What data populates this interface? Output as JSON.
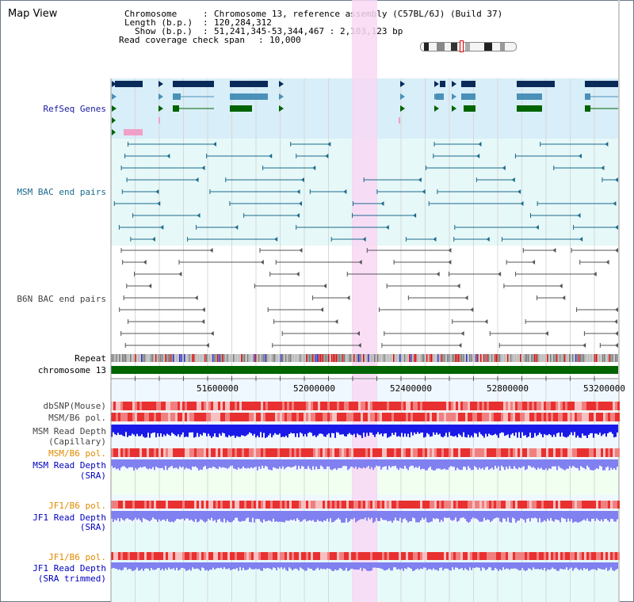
{
  "window": {
    "title": "Map View"
  },
  "info": {
    "chromosome_label": "Chromosome",
    "chromosome_value": "Chromosome 13, reference assembly (C57BL/6J) (Build 37)",
    "length_label": "Length (b.p.)",
    "length_value": "120,284,312",
    "show_label": "Show (b.p.)",
    "show_value": "51,241,345-53,344,467 : 2,103,123 bp",
    "coverage_label": "Read coverage check span",
    "coverage_value": "10,000"
  },
  "tracks": {
    "refseq": "RefSeq Genes",
    "msm_bac": "MSM BAC end pairs",
    "b6n_bac": "B6N BAC end pairs",
    "repeat": "Repeat",
    "chromosome": "chromosome 13",
    "dbsnp": "dbSNP(Mouse)",
    "msm_b6_pol": "MSM/B6 pol.",
    "msm_read_depth_cap_1": "MSM Read Depth",
    "msm_read_depth_cap_2": "(Capillary)",
    "msm_b6_pol_sra": "MSM/B6 pol.",
    "msm_read_depth_sra_1": "MSM Read Depth",
    "msm_read_depth_sra_2": "(SRA)",
    "jf1_b6_pol": "JF1/B6 pol.",
    "jf1_read_depth_1": "JF1 Read Depth",
    "jf1_read_depth_2": "(SRA)",
    "jf1_b6_pol_trim": "JF1/B6 pol.",
    "jf1_read_depth_trim_1": "JF1 Read Depth",
    "jf1_read_depth_trim_2": "(SRA trimmed)"
  },
  "axis": {
    "ticks": [
      "51600000",
      "52000000",
      "52400000",
      "52800000",
      "53200000"
    ]
  },
  "colors": {
    "refseq_bg": "#d8eef8",
    "msm_bg": "#e6f8f8",
    "highlight": "#f8d8f4",
    "chrom": "#006400",
    "gene_dark": "#0a2a5a",
    "gene_mid": "#4a90b8",
    "gene_green": "#006400",
    "msm_line": "#1a6a8a",
    "b6n_line": "#555555",
    "depth_blue": "#1a1ae8",
    "depth_light": "#8080f0"
  }
}
